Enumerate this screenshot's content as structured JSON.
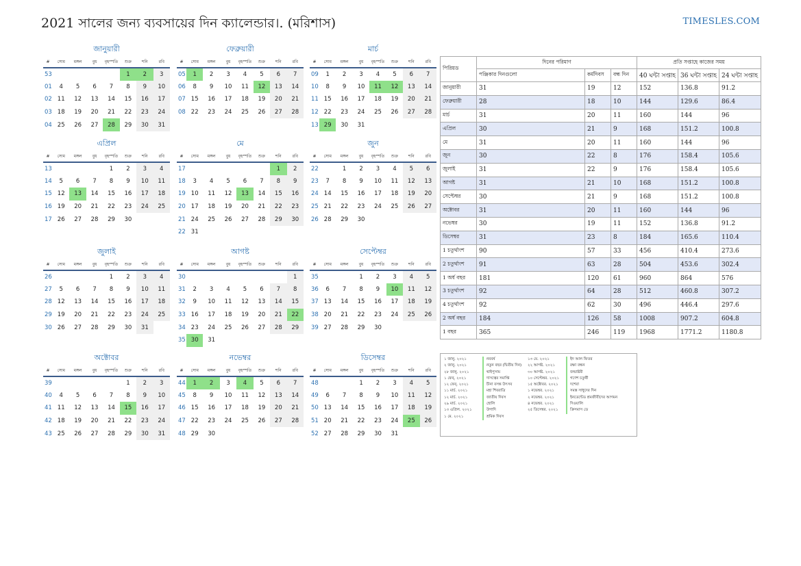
{
  "title": "2021 সালের জন্য ব্যবসায়ের দিন ক্যালেন্ডার।. (মরিশাস)",
  "site": "TIMESLES.COM",
  "weekdays": [
    "#",
    "সোম",
    "মঙ্গল",
    "বুধ",
    "বৃহস্পতি",
    "শুক্র",
    "শনি",
    "রবি"
  ],
  "months": [
    {
      "name": "জানুয়ারী",
      "weeks": [
        [
          "53",
          "",
          "",
          "",
          "",
          "1",
          "2",
          "3"
        ],
        [
          "01",
          "4",
          "5",
          "6",
          "7",
          "8",
          "9",
          "10"
        ],
        [
          "02",
          "11",
          "12",
          "13",
          "14",
          "15",
          "16",
          "17"
        ],
        [
          "03",
          "18",
          "19",
          "20",
          "21",
          "22",
          "23",
          "24"
        ],
        [
          "04",
          "25",
          "26",
          "27",
          "28",
          "29",
          "30",
          "31"
        ]
      ],
      "holidays": [
        "1",
        "2",
        "28"
      ]
    },
    {
      "name": "ফেব্রুয়ারী",
      "weeks": [
        [
          "05",
          "1",
          "2",
          "3",
          "4",
          "5",
          "6",
          "7"
        ],
        [
          "06",
          "8",
          "9",
          "10",
          "11",
          "12",
          "13",
          "14"
        ],
        [
          "07",
          "15",
          "16",
          "17",
          "18",
          "19",
          "20",
          "21"
        ],
        [
          "08",
          "22",
          "23",
          "24",
          "25",
          "26",
          "27",
          "28"
        ]
      ],
      "holidays": [
        "1",
        "12"
      ]
    },
    {
      "name": "মার্চ",
      "weeks": [
        [
          "09",
          "1",
          "2",
          "3",
          "4",
          "5",
          "6",
          "7"
        ],
        [
          "10",
          "8",
          "9",
          "10",
          "11",
          "12",
          "13",
          "14"
        ],
        [
          "11",
          "15",
          "16",
          "17",
          "18",
          "19",
          "20",
          "21"
        ],
        [
          "12",
          "22",
          "23",
          "24",
          "25",
          "26",
          "27",
          "28"
        ],
        [
          "13",
          "29",
          "30",
          "31",
          "",
          "",
          "",
          ""
        ]
      ],
      "holidays": [
        "11",
        "12",
        "29"
      ]
    },
    {
      "name": "এপ্রিল",
      "weeks": [
        [
          "13",
          "",
          "",
          "",
          "1",
          "2",
          "3",
          "4"
        ],
        [
          "14",
          "5",
          "6",
          "7",
          "8",
          "9",
          "10",
          "11"
        ],
        [
          "15",
          "12",
          "13",
          "14",
          "15",
          "16",
          "17",
          "18"
        ],
        [
          "16",
          "19",
          "20",
          "21",
          "22",
          "23",
          "24",
          "25"
        ],
        [
          "17",
          "26",
          "27",
          "28",
          "29",
          "30",
          "",
          ""
        ]
      ],
      "holidays": [
        "13"
      ]
    },
    {
      "name": "মে",
      "weeks": [
        [
          "17",
          "",
          "",
          "",
          "",
          "",
          "1",
          "2"
        ],
        [
          "18",
          "3",
          "4",
          "5",
          "6",
          "7",
          "8",
          "9"
        ],
        [
          "19",
          "10",
          "11",
          "12",
          "13",
          "14",
          "15",
          "16"
        ],
        [
          "20",
          "17",
          "18",
          "19",
          "20",
          "21",
          "22",
          "23"
        ],
        [
          "21",
          "24",
          "25",
          "26",
          "27",
          "28",
          "29",
          "30"
        ],
        [
          "22",
          "31",
          "",
          "",
          "",
          "",
          "",
          ""
        ]
      ],
      "holidays": [
        "1",
        "13"
      ]
    },
    {
      "name": "জুন",
      "weeks": [
        [
          "22",
          "",
          "1",
          "2",
          "3",
          "4",
          "5",
          "6"
        ],
        [
          "23",
          "7",
          "8",
          "9",
          "10",
          "11",
          "12",
          "13"
        ],
        [
          "24",
          "14",
          "15",
          "16",
          "17",
          "18",
          "19",
          "20"
        ],
        [
          "25",
          "21",
          "22",
          "23",
          "24",
          "25",
          "26",
          "27"
        ],
        [
          "26",
          "28",
          "29",
          "30",
          "",
          "",
          "",
          ""
        ]
      ],
      "holidays": []
    },
    {
      "name": "জুলাই",
      "weeks": [
        [
          "26",
          "",
          "",
          "",
          "1",
          "2",
          "3",
          "4"
        ],
        [
          "27",
          "5",
          "6",
          "7",
          "8",
          "9",
          "10",
          "11"
        ],
        [
          "28",
          "12",
          "13",
          "14",
          "15",
          "16",
          "17",
          "18"
        ],
        [
          "29",
          "19",
          "20",
          "21",
          "22",
          "23",
          "24",
          "25"
        ],
        [
          "30",
          "26",
          "27",
          "28",
          "29",
          "30",
          "31",
          ""
        ]
      ],
      "holidays": []
    },
    {
      "name": "আগষ্ট",
      "weeks": [
        [
          "30",
          "",
          "",
          "",
          "",
          "",
          "",
          "1"
        ],
        [
          "31",
          "2",
          "3",
          "4",
          "5",
          "6",
          "7",
          "8"
        ],
        [
          "32",
          "9",
          "10",
          "11",
          "12",
          "13",
          "14",
          "15"
        ],
        [
          "33",
          "16",
          "17",
          "18",
          "19",
          "20",
          "21",
          "22"
        ],
        [
          "34",
          "23",
          "24",
          "25",
          "26",
          "27",
          "28",
          "29"
        ],
        [
          "35",
          "30",
          "31",
          "",
          "",
          "",
          "",
          ""
        ]
      ],
      "holidays": [
        "22",
        "30"
      ]
    },
    {
      "name": "সেপ্টেম্বর",
      "weeks": [
        [
          "35",
          "",
          "",
          "1",
          "2",
          "3",
          "4",
          "5"
        ],
        [
          "36",
          "6",
          "7",
          "8",
          "9",
          "10",
          "11",
          "12"
        ],
        [
          "37",
          "13",
          "14",
          "15",
          "16",
          "17",
          "18",
          "19"
        ],
        [
          "38",
          "20",
          "21",
          "22",
          "23",
          "24",
          "25",
          "26"
        ],
        [
          "39",
          "27",
          "28",
          "29",
          "30",
          "",
          "",
          ""
        ]
      ],
      "holidays": [
        "10"
      ]
    },
    {
      "name": "অক্টোবর",
      "weeks": [
        [
          "39",
          "",
          "",
          "",
          "",
          "1",
          "2",
          "3"
        ],
        [
          "40",
          "4",
          "5",
          "6",
          "7",
          "8",
          "9",
          "10"
        ],
        [
          "41",
          "11",
          "12",
          "13",
          "14",
          "15",
          "16",
          "17"
        ],
        [
          "42",
          "18",
          "19",
          "20",
          "21",
          "22",
          "23",
          "24"
        ],
        [
          "43",
          "25",
          "26",
          "27",
          "28",
          "29",
          "30",
          "31"
        ]
      ],
      "holidays": [
        "15"
      ]
    },
    {
      "name": "নভেম্বর",
      "weeks": [
        [
          "44",
          "1",
          "2",
          "3",
          "4",
          "5",
          "6",
          "7"
        ],
        [
          "45",
          "8",
          "9",
          "10",
          "11",
          "12",
          "13",
          "14"
        ],
        [
          "46",
          "15",
          "16",
          "17",
          "18",
          "19",
          "20",
          "21"
        ],
        [
          "47",
          "22",
          "23",
          "24",
          "25",
          "26",
          "27",
          "28"
        ],
        [
          "48",
          "29",
          "30",
          "",
          "",
          "",
          "",
          ""
        ]
      ],
      "holidays": [
        "1",
        "2",
        "4"
      ]
    },
    {
      "name": "ডিসেম্বর",
      "weeks": [
        [
          "48",
          "",
          "",
          "1",
          "2",
          "3",
          "4",
          "5"
        ],
        [
          "49",
          "6",
          "7",
          "8",
          "9",
          "10",
          "11",
          "12"
        ],
        [
          "50",
          "13",
          "14",
          "15",
          "16",
          "17",
          "18",
          "19"
        ],
        [
          "51",
          "20",
          "21",
          "22",
          "23",
          "24",
          "25",
          "26"
        ],
        [
          "52",
          "27",
          "28",
          "29",
          "30",
          "31",
          "",
          ""
        ]
      ],
      "holidays": [
        "25"
      ]
    }
  ],
  "summary": {
    "period_header": "পিরিয়ড",
    "days_group": "দিনের পরিমাণ",
    "hours_group": "প্রতি সপ্তাহে কাজের সময়",
    "columns": [
      "পঞ্জিকার দিনগুলো",
      "কর্মদিবস",
      "বন্ধ দিন",
      "40 ঘন্টা সপ্তাহ",
      "36 ঘন্টা সপ্তাহ",
      "24 ঘন্টা সপ্তাহ"
    ],
    "rows": [
      {
        "period": "জানুয়ারী",
        "values": [
          "31",
          "19",
          "12",
          "152",
          "136.8",
          "91.2"
        ]
      },
      {
        "period": "ফেব্রুয়ারী",
        "values": [
          "28",
          "18",
          "10",
          "144",
          "129.6",
          "86.4"
        ]
      },
      {
        "period": "মার্চ",
        "values": [
          "31",
          "20",
          "11",
          "160",
          "144",
          "96"
        ]
      },
      {
        "period": "এপ্রিল",
        "values": [
          "30",
          "21",
          "9",
          "168",
          "151.2",
          "100.8"
        ]
      },
      {
        "period": "মে",
        "values": [
          "31",
          "20",
          "11",
          "160",
          "144",
          "96"
        ]
      },
      {
        "period": "জুন",
        "values": [
          "30",
          "22",
          "8",
          "176",
          "158.4",
          "105.6"
        ]
      },
      {
        "period": "জুলাই",
        "values": [
          "31",
          "22",
          "9",
          "176",
          "158.4",
          "105.6"
        ]
      },
      {
        "period": "আগষ্ট",
        "values": [
          "31",
          "21",
          "10",
          "168",
          "151.2",
          "100.8"
        ]
      },
      {
        "period": "সেপ্টেম্বর",
        "values": [
          "30",
          "21",
          "9",
          "168",
          "151.2",
          "100.8"
        ]
      },
      {
        "period": "অক্টোবর",
        "values": [
          "31",
          "20",
          "11",
          "160",
          "144",
          "96"
        ]
      },
      {
        "period": "নভেম্বর",
        "values": [
          "30",
          "19",
          "11",
          "152",
          "136.8",
          "91.2"
        ]
      },
      {
        "period": "ডিসেম্বর",
        "values": [
          "31",
          "23",
          "8",
          "184",
          "165.6",
          "110.4"
        ]
      },
      {
        "period": "1 চতুর্থাংশ",
        "values": [
          "90",
          "57",
          "33",
          "456",
          "410.4",
          "273.6"
        ]
      },
      {
        "period": "2 চতুর্থাংশ",
        "values": [
          "91",
          "63",
          "28",
          "504",
          "453.6",
          "302.4"
        ]
      },
      {
        "period": "1 অর্ধ বছর",
        "values": [
          "181",
          "120",
          "61",
          "960",
          "864",
          "576"
        ]
      },
      {
        "period": "3 চতুর্থাংশ",
        "values": [
          "92",
          "64",
          "28",
          "512",
          "460.8",
          "307.2"
        ]
      },
      {
        "period": "4 চতুর্থাংশ",
        "values": [
          "92",
          "62",
          "30",
          "496",
          "446.4",
          "297.6"
        ]
      },
      {
        "period": "2 অর্ধ বছর",
        "values": [
          "184",
          "126",
          "58",
          "1008",
          "907.2",
          "604.8"
        ]
      },
      {
        "period": "1 বছর",
        "values": [
          "365",
          "246",
          "119",
          "1968",
          "1771.2",
          "1180.8"
        ]
      }
    ]
  },
  "holidays_list": {
    "col1": [
      {
        "date": "১ জানু. ২০২১",
        "name": "নববর্ষ"
      },
      {
        "date": "২ জানু. ২০২১",
        "name": "নতুন বছর (দ্বিতীয় দিন)"
      },
      {
        "date": "২৮ জানু. ২০২১",
        "name": "থাইপুসাম"
      },
      {
        "date": "১ ফেব্. ২০২১",
        "name": "দাসত্বের সমাপ্তি"
      },
      {
        "date": "১২ ফেব্. ২০২১",
        "name": "চীনা বসন্ত উৎসব"
      },
      {
        "date": "১১ মার্চ. ২০২১",
        "name": "মহা শিবরাত্রি"
      },
      {
        "date": "১২ মার্চ. ২০২১",
        "name": "জাতীয় দিবস"
      },
      {
        "date": "২৯ মার্চ. ২০২১",
        "name": "হোলি"
      },
      {
        "date": "১৩ এপ্রিল. ২০২১",
        "name": "উগাদি"
      },
      {
        "date": "১ মে. ২০২১",
        "name": "শ্রমিক দিবস"
      }
    ],
    "col2": [
      {
        "date": "১৩ মে. ২০২১",
        "name": "ইদ আল ফিতর"
      },
      {
        "date": "২২ আগষ্ট. ২০২১",
        "name": "রক্ষা বন্ধন"
      },
      {
        "date": "৩০ আগষ্ট. ২০২১",
        "name": "জন্মাষ্টমী"
      },
      {
        "date": "১০ সেপ্টেম্বর. ২০২১",
        "name": "গণেশ চতুর্থী"
      },
      {
        "date": "১৫ অক্টোবর. ২০২১",
        "name": "দশেরা"
      },
      {
        "date": "১ নভেম্বর. ২০২১",
        "name": "সমস্ত সাধুদের দিন"
      },
      {
        "date": "২ নভেম্বর. ২০২১",
        "name": "ইনডেন্টেড শ্রমজীবীদের আগমন"
      },
      {
        "date": "৪ নভেম্বর. ২০২১",
        "name": "দিওয়ালি"
      },
      {
        "date": "২৫ ডিসেম্বর. ২০২১",
        "name": "ক্রিসমাস ডে"
      }
    ]
  }
}
